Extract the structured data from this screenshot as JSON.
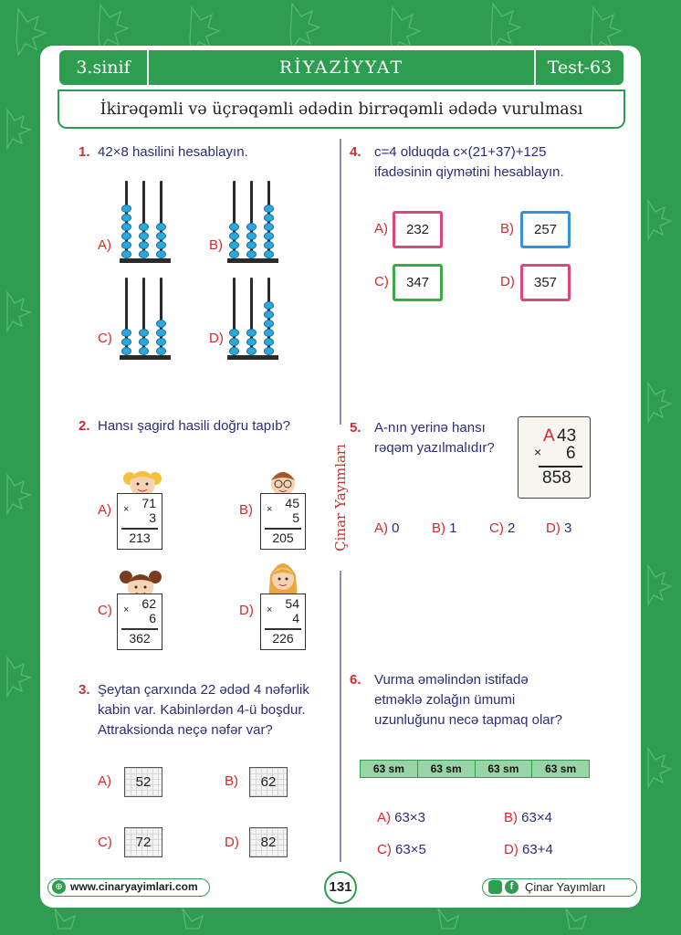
{
  "header": {
    "grade": "3.sinif",
    "subject": "RİYAZİYYAT",
    "test": "Test-63"
  },
  "topic": "İkirəqəmli və üçrəqəmli ədədin birrəqəmli ədədə vurulması",
  "brand_vertical": "Çinar Yayımları",
  "q1": {
    "num": "1.",
    "text": "42×8 hasilini hesablayın.",
    "options": [
      "A)",
      "B)",
      "C)",
      "D)"
    ]
  },
  "q2": {
    "num": "2.",
    "text": "Hansı şagird hasili doğru tapıb?",
    "options": [
      {
        "label": "A)",
        "a": "71",
        "b": "3",
        "r": "213"
      },
      {
        "label": "B)",
        "a": "45",
        "b": "5",
        "r": "205"
      },
      {
        "label": "C)",
        "a": "62",
        "b": "6",
        "r": "362"
      },
      {
        "label": "D)",
        "a": "54",
        "b": "4",
        "r": "226"
      }
    ],
    "times_sign": "×"
  },
  "q3": {
    "num": "3.",
    "lines": [
      "Şeytan çarxında 22 ədəd 4 nəfərlik",
      "kabin var. Kabinlərdən 4-ü boşdur.",
      "Attraksionda neçə nəfər var?"
    ],
    "options": [
      {
        "label": "A)",
        "value": "52"
      },
      {
        "label": "B)",
        "value": "62"
      },
      {
        "label": "C)",
        "value": "72"
      },
      {
        "label": "D)",
        "value": "82"
      }
    ]
  },
  "q4": {
    "num": "4.",
    "lines": [
      "c=4 olduqda c×(21+37)+125",
      "ifadəsinin qiymətini hesablayın."
    ],
    "options": [
      {
        "label": "A)",
        "value": "232",
        "color": "#e0457b"
      },
      {
        "label": "B)",
        "value": "257",
        "color": "#3a8fd6"
      },
      {
        "label": "C)",
        "value": "347",
        "color": "#3aaa4a"
      },
      {
        "label": "D)",
        "value": "357",
        "color": "#e0457b"
      }
    ]
  },
  "q5": {
    "num": "5.",
    "lines": [
      "A-nın yerinə hansı",
      "rəqəm yazılmalıdır?"
    ],
    "puzzle": {
      "letter": "A",
      "top": "43",
      "times": "×",
      "mult": "6",
      "result": "858"
    },
    "options": [
      {
        "label": "A)",
        "value": "0"
      },
      {
        "label": "B)",
        "value": "1"
      },
      {
        "label": "C)",
        "value": "2"
      },
      {
        "label": "D)",
        "value": "3"
      }
    ]
  },
  "q6": {
    "num": "6.",
    "lines": [
      "Vurma əməlindən istifadə",
      "etməklə zolağın ümumi",
      "uzunluğunu necə tapmaq olar?"
    ],
    "strip": [
      "63 sm",
      "63 sm",
      "63 sm",
      "63 sm"
    ],
    "options": [
      {
        "label": "A)",
        "value": "63×3"
      },
      {
        "label": "B)",
        "value": "63×4"
      },
      {
        "label": "C)",
        "value": "63×5"
      },
      {
        "label": "D)",
        "value": "63+4"
      }
    ]
  },
  "footer": {
    "website": "www.cinaryayimlari.com",
    "page": "131",
    "social": "Çinar Yayımları"
  },
  "colors": {
    "green": "#2e9d4f",
    "red": "#d32a2a",
    "navy": "#2b2c7a",
    "bead": "#2aa8e0"
  }
}
